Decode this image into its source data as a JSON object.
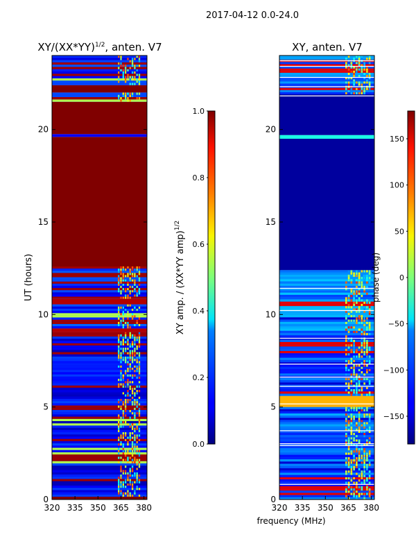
{
  "figure": {
    "suptitle": "2017-04-12 0.0-24.0"
  },
  "chart_data": [
    {
      "type": "heatmap",
      "title": "XY/(XX*YY)",
      "title_sup": "1/2",
      "title_suffix": ", anten. V7",
      "xlabel": "",
      "ylabel": "UT (hours)",
      "xlim": [
        320,
        382
      ],
      "ylim": [
        0,
        24
      ],
      "xticks": [
        320,
        335,
        350,
        365,
        380
      ],
      "yticks": [
        0,
        5,
        10,
        15,
        20
      ],
      "colorbar": {
        "label": "XY amp. / (XX*YY amp)",
        "label_sup": "1/2",
        "range": [
          0.0,
          1.0
        ],
        "ticks": [
          "0.0",
          "0.2",
          "0.4",
          "0.6",
          "0.8",
          "1.0"
        ],
        "colormap": "jet"
      },
      "bands": [
        {
          "from": 0.0,
          "to": 0.15,
          "value": 1.0
        },
        {
          "from": 0.15,
          "to": 9.05,
          "value": 0.12,
          "striped": true
        },
        {
          "from": 9.05,
          "to": 9.25,
          "value": 0.95
        },
        {
          "from": 9.25,
          "to": 10.55,
          "value": 0.15,
          "striped": true
        },
        {
          "from": 10.55,
          "to": 10.85,
          "value": 0.95
        },
        {
          "from": 10.85,
          "to": 12.6,
          "value": 0.15,
          "striped": true
        },
        {
          "from": 12.6,
          "to": 19.6,
          "value": 1.0
        },
        {
          "from": 19.6,
          "to": 19.75,
          "value": 0.12
        },
        {
          "from": 19.75,
          "to": 21.5,
          "value": 1.0
        },
        {
          "from": 21.5,
          "to": 22.0,
          "value": 0.15,
          "striped": true
        },
        {
          "from": 22.0,
          "to": 22.4,
          "value": 1.0
        },
        {
          "from": 22.4,
          "to": 24.0,
          "value": 0.15,
          "striped": true
        }
      ],
      "hot_columns": {
        "from_mhz": 363,
        "to_mhz": 378,
        "value": 0.55
      }
    },
    {
      "type": "heatmap",
      "title": "XY, anten. V7",
      "xlabel": "frequency (MHz)",
      "ylabel": "",
      "xlim": [
        320,
        382
      ],
      "ylim": [
        0,
        24
      ],
      "xticks": [
        320,
        335,
        350,
        365,
        380
      ],
      "yticks": [
        0,
        5,
        10,
        15,
        20
      ],
      "colorbar": {
        "label": "phase (deg)",
        "range": [
          -180,
          180
        ],
        "ticks": [
          "−150",
          "−100",
          "−50",
          "0",
          "50",
          "100",
          "150"
        ],
        "colormap": "jet"
      },
      "bands": [
        {
          "from": 0.0,
          "to": 2.9,
          "value": 0.2,
          "striped": true
        },
        {
          "from": 2.9,
          "to": 5.0,
          "value": 0.22,
          "striped": true
        },
        {
          "from": 5.0,
          "to": 5.6,
          "value": 0.7
        },
        {
          "from": 5.6,
          "to": 9.0,
          "value": 0.2,
          "striped": true
        },
        {
          "from": 9.0,
          "to": 12.4,
          "value": 0.25,
          "striped": true
        },
        {
          "from": 12.4,
          "to": 19.5,
          "value": 0.03
        },
        {
          "from": 19.5,
          "to": 19.7,
          "value": 0.4
        },
        {
          "from": 19.7,
          "to": 21.9,
          "value": 0.03
        },
        {
          "from": 21.9,
          "to": 24.0,
          "value": 0.22,
          "striped": true
        }
      ],
      "hot_columns": {
        "from_mhz": 363,
        "to_mhz": 380,
        "value": 0.55
      }
    }
  ]
}
